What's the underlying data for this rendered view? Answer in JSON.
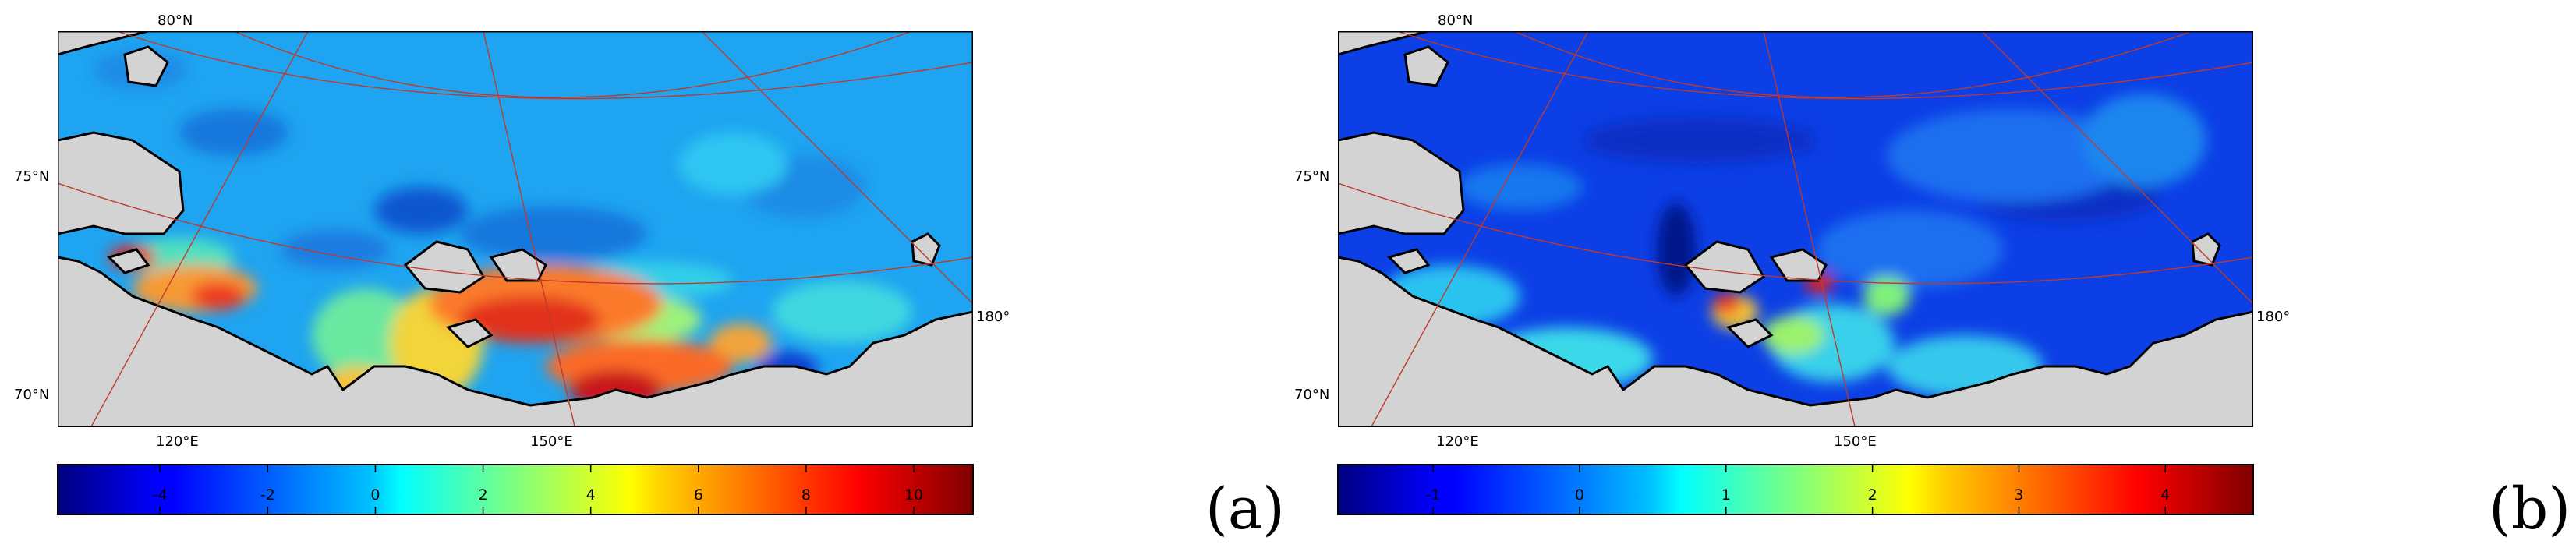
{
  "panels": [
    {
      "id": "a",
      "label": "(a)",
      "lat_labels": [
        "80°N",
        "75°N",
        "70°N"
      ],
      "lon_labels": [
        "120°E",
        "150°E",
        "180°"
      ],
      "colorbar": {
        "ticks": [
          "-4",
          "-2",
          "0",
          "2",
          "4",
          "6",
          "8",
          "10"
        ],
        "tick_values": [
          -4,
          -2,
          0,
          2,
          4,
          6,
          8,
          10
        ],
        "min": -5.9,
        "max": 11.1
      }
    },
    {
      "id": "b",
      "label": "(b)",
      "lat_labels": [
        "80°N",
        "75°N",
        "70°N"
      ],
      "lon_labels": [
        "120°E",
        "150°E",
        "180°"
      ],
      "colorbar": {
        "ticks": [
          "-1",
          "0",
          "1",
          "2",
          "3",
          "4"
        ],
        "tick_values": [
          -1,
          0,
          1,
          2,
          3,
          4
        ],
        "min": -1.65,
        "max": 4.6
      }
    }
  ],
  "colors": {
    "land": "#d3d3d3",
    "coast": "#000000",
    "graticule": "#c0392b",
    "colormap": "jet"
  }
}
